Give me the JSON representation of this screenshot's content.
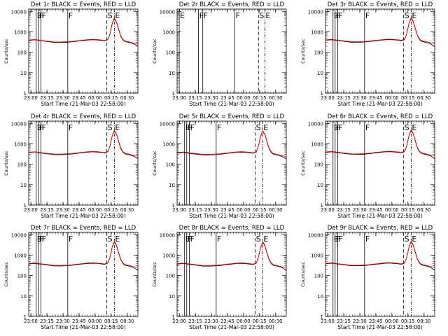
{
  "chart_data": {
    "type": "line",
    "x_tick_labels": [
      "23:00",
      "23:15",
      "23:30",
      "23:45",
      "00:00",
      "00:15",
      "00:30"
    ],
    "x_label": "Start Time (21-Mar-03 22:58:00)",
    "y_label": "Counts/sec",
    "y_scale": "log",
    "y_range": [
      1,
      13000
    ],
    "y_tick_labels": [
      "1",
      "10",
      "100",
      "1000",
      "10000"
    ],
    "x_range_minutes": [
      0,
      102
    ],
    "x_tick_minutes": [
      2,
      17,
      32,
      47,
      62,
      77,
      92
    ],
    "grid": false,
    "legend": "none",
    "series": [
      {
        "name": "Events",
        "color": "#000000"
      },
      {
        "name": "LLD",
        "color": "#ff0000"
      }
    ],
    "time_minutes": [
      0,
      6,
      12,
      18,
      24,
      30,
      36,
      40,
      44,
      48,
      52,
      56,
      60,
      64,
      68,
      71,
      74,
      76,
      78,
      80,
      82,
      84,
      86,
      88,
      90,
      94,
      98,
      102
    ],
    "panels": [
      {
        "title": "Det 1r BLACK = Events, RED = LLD",
        "events": [
          380,
          410,
          360,
          330,
          300,
          300,
          310,
          320,
          340,
          360,
          380,
          400,
          410,
          400,
          380,
          360,
          420,
          800,
          2500,
          4500,
          3000,
          1300,
          600,
          400,
          330,
          300,
          260,
          200
        ],
        "lld": [
          400,
          420,
          380,
          350,
          320,
          320,
          330,
          340,
          360,
          380,
          400,
          420,
          430,
          420,
          400,
          380,
          440,
          820,
          2600,
          4800,
          3200,
          1400,
          650,
          430,
          360,
          320,
          280,
          260
        ],
        "markers": [
          {
            "label": "E",
            "t": 7
          },
          {
            "label": "F",
            "t": 9
          },
          {
            "label": "F",
            "t": 11.5
          },
          {
            "label": "F",
            "t": 36.5
          },
          {
            "label": "S",
            "t": 73
          },
          {
            "label": "E",
            "t": 80
          }
        ]
      },
      {
        "title": "Det 2r BLACK = Events, RED = LLD",
        "events": [],
        "lld": [],
        "markers": [
          {
            "label": "E",
            "t": 2
          },
          {
            "label": "F",
            "t": 20
          },
          {
            "label": "F",
            "t": 24
          },
          {
            "label": "F",
            "t": 54
          },
          {
            "label": "S",
            "t": 76
          },
          {
            "label": "E",
            "t": 82
          }
        ]
      },
      {
        "title": "Det 3r BLACK = Events, RED = LLD",
        "events": [
          390,
          410,
          370,
          340,
          310,
          305,
          315,
          330,
          350,
          370,
          390,
          410,
          415,
          405,
          385,
          365,
          430,
          820,
          2600,
          4700,
          3100,
          1350,
          620,
          410,
          340,
          300,
          260,
          190
        ],
        "lld": [
          410,
          430,
          390,
          360,
          330,
          325,
          335,
          350,
          370,
          390,
          410,
          430,
          440,
          425,
          405,
          385,
          450,
          850,
          2700,
          5000,
          3300,
          1450,
          660,
          440,
          370,
          330,
          290,
          270
        ],
        "markers": [
          {
            "label": "E",
            "t": 7
          },
          {
            "label": "F",
            "t": 9
          },
          {
            "label": "F",
            "t": 11.5
          },
          {
            "label": "F",
            "t": 36.5
          },
          {
            "label": "S",
            "t": 73
          },
          {
            "label": "E",
            "t": 80
          }
        ]
      },
      {
        "title": "Det 4r BLACK = Events, RED = LLD",
        "events": [
          370,
          400,
          350,
          320,
          295,
          295,
          305,
          315,
          335,
          355,
          375,
          395,
          405,
          395,
          375,
          355,
          415,
          790,
          2400,
          4300,
          2900,
          1250,
          580,
          390,
          320,
          290,
          250,
          190
        ],
        "lld": [
          390,
          410,
          370,
          340,
          315,
          315,
          325,
          335,
          355,
          375,
          395,
          415,
          425,
          415,
          395,
          375,
          435,
          810,
          2500,
          4600,
          3100,
          1350,
          630,
          420,
          350,
          310,
          270,
          250
        ],
        "markers": [
          {
            "label": "E",
            "t": 7
          },
          {
            "label": "F",
            "t": 9
          },
          {
            "label": "F",
            "t": 11.5
          },
          {
            "label": "F",
            "t": 36.5
          },
          {
            "label": "S",
            "t": 73
          },
          {
            "label": "E",
            "t": 80
          }
        ]
      },
      {
        "title": "Det 5r BLACK = Events, RED = LLD",
        "events": [
          350,
          380,
          340,
          310,
          285,
          285,
          295,
          305,
          325,
          345,
          365,
          385,
          395,
          385,
          365,
          345,
          400,
          760,
          2300,
          4100,
          2800,
          1200,
          560,
          380,
          310,
          280,
          240,
          180
        ],
        "lld": [
          370,
          400,
          360,
          330,
          305,
          305,
          315,
          325,
          345,
          365,
          385,
          405,
          415,
          405,
          385,
          365,
          420,
          790,
          2400,
          4400,
          3000,
          1300,
          610,
          410,
          340,
          300,
          260,
          240
        ],
        "markers": [
          {
            "label": "E",
            "t": 7
          },
          {
            "label": "F",
            "t": 9
          },
          {
            "label": "F",
            "t": 11.5
          },
          {
            "label": "F",
            "t": 36.5
          },
          {
            "label": "S",
            "t": 73
          },
          {
            "label": "E",
            "t": 80
          }
        ]
      },
      {
        "title": "Det 6r BLACK = Events, RED = LLD",
        "events": [
          380,
          405,
          365,
          335,
          305,
          300,
          310,
          325,
          345,
          365,
          385,
          405,
          410,
          400,
          380,
          360,
          425,
          810,
          2550,
          4600,
          3050,
          1300,
          610,
          400,
          330,
          300,
          260,
          190
        ],
        "lld": [
          400,
          425,
          385,
          355,
          325,
          320,
          330,
          345,
          365,
          385,
          405,
          425,
          435,
          420,
          400,
          380,
          445,
          840,
          2650,
          4900,
          3250,
          1400,
          650,
          430,
          360,
          320,
          280,
          260
        ],
        "markers": [
          {
            "label": "E",
            "t": 7
          },
          {
            "label": "F",
            "t": 9
          },
          {
            "label": "F",
            "t": 11.5
          },
          {
            "label": "F",
            "t": 36.5
          },
          {
            "label": "S",
            "t": 73
          },
          {
            "label": "E",
            "t": 80
          }
        ]
      },
      {
        "title": "Det 7r BLACK = Events, RED = LLD",
        "events": [
          370,
          395,
          355,
          325,
          295,
          295,
          305,
          315,
          335,
          355,
          375,
          395,
          400,
          390,
          370,
          350,
          410,
          780,
          2450,
          4400,
          2950,
          1250,
          590,
          390,
          320,
          290,
          250,
          180
        ],
        "lld": [
          390,
          415,
          375,
          345,
          315,
          315,
          325,
          335,
          355,
          375,
          395,
          415,
          425,
          410,
          390,
          370,
          430,
          810,
          2550,
          4700,
          3150,
          1350,
          630,
          420,
          350,
          310,
          270,
          250
        ],
        "markers": [
          {
            "label": "E",
            "t": 7
          },
          {
            "label": "F",
            "t": 9
          },
          {
            "label": "F",
            "t": 11.5
          },
          {
            "label": "F",
            "t": 36.5
          },
          {
            "label": "S",
            "t": 73
          },
          {
            "label": "E",
            "t": 80
          }
        ]
      },
      {
        "title": "Det 8r BLACK = Events, RED = LLD",
        "events": [
          360,
          390,
          350,
          320,
          290,
          290,
          300,
          310,
          330,
          350,
          370,
          390,
          395,
          385,
          365,
          345,
          405,
          770,
          2350,
          4200,
          2850,
          1220,
          570,
          385,
          315,
          285,
          245,
          180
        ],
        "lld": [
          380,
          410,
          370,
          340,
          310,
          310,
          320,
          330,
          350,
          370,
          390,
          410,
          420,
          405,
          385,
          365,
          425,
          800,
          2450,
          4500,
          3050,
          1320,
          620,
          415,
          345,
          305,
          265,
          245
        ],
        "markers": [
          {
            "label": "E",
            "t": 7
          },
          {
            "label": "F",
            "t": 9
          },
          {
            "label": "F",
            "t": 11.5
          },
          {
            "label": "F",
            "t": 36.5
          },
          {
            "label": "S",
            "t": 73
          },
          {
            "label": "E",
            "t": 80
          }
        ]
      },
      {
        "title": "Det 9r BLACK = Events, RED = LLD",
        "events": [
          375,
          400,
          360,
          330,
          300,
          300,
          310,
          320,
          340,
          360,
          380,
          400,
          405,
          395,
          375,
          355,
          415,
          800,
          2500,
          4500,
          3000,
          1280,
          600,
          395,
          325,
          295,
          255,
          185
        ],
        "lld": [
          395,
          420,
          380,
          350,
          320,
          320,
          330,
          340,
          360,
          380,
          400,
          420,
          430,
          415,
          395,
          375,
          435,
          830,
          2600,
          4800,
          3200,
          1380,
          640,
          425,
          355,
          315,
          275,
          255
        ],
        "markers": [
          {
            "label": "E",
            "t": 7
          },
          {
            "label": "F",
            "t": 9
          },
          {
            "label": "F",
            "t": 11.5
          },
          {
            "label": "F",
            "t": 36.5
          },
          {
            "label": "S",
            "t": 73
          },
          {
            "label": "E",
            "t": 80
          }
        ]
      }
    ]
  }
}
